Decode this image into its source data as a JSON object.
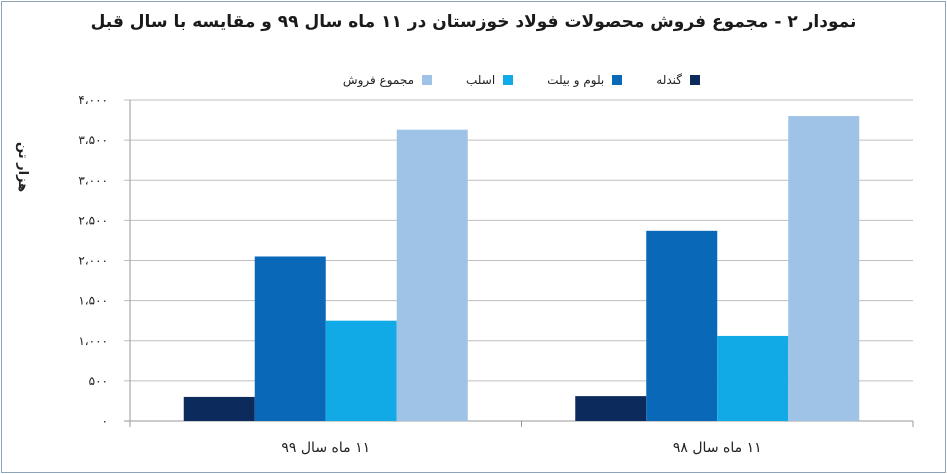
{
  "chart_data": {
    "type": "bar",
    "title": "نمودار ۲ - مجموع فروش محصولات فولاد خوزستان در ۱۱ ماه سال ۹۹ و مقایسه با سال قبل",
    "ylabel": "هزار تن",
    "xlabel": "",
    "ylim": [
      0,
      4000
    ],
    "yticks": [
      0,
      500,
      1000,
      1500,
      2000,
      2500,
      3000,
      3500,
      4000
    ],
    "ytick_labels": [
      "۰",
      "۵۰۰",
      "۱،۰۰۰",
      "۱،۵۰۰",
      "۲،۰۰۰",
      "۲،۵۰۰",
      "۳،۰۰۰",
      "۳،۵۰۰",
      "۴،۰۰۰"
    ],
    "categories": [
      "۱۱ ماه سال ۹۹",
      "۱۱ ماه سال ۹۸"
    ],
    "series": [
      {
        "name": "گندله",
        "color": "#0d2a5c",
        "values": [
          300,
          310
        ]
      },
      {
        "name": "بلوم و بیلت",
        "color": "#0a68b8",
        "values": [
          2050,
          2370
        ]
      },
      {
        "name": "اسلب",
        "color": "#12aae6",
        "values": [
          1250,
          1060
        ]
      },
      {
        "name": "مجموع فروش",
        "color": "#9fc3e6",
        "values": [
          3630,
          3800
        ]
      }
    ],
    "grid": true,
    "legend": "top"
  }
}
